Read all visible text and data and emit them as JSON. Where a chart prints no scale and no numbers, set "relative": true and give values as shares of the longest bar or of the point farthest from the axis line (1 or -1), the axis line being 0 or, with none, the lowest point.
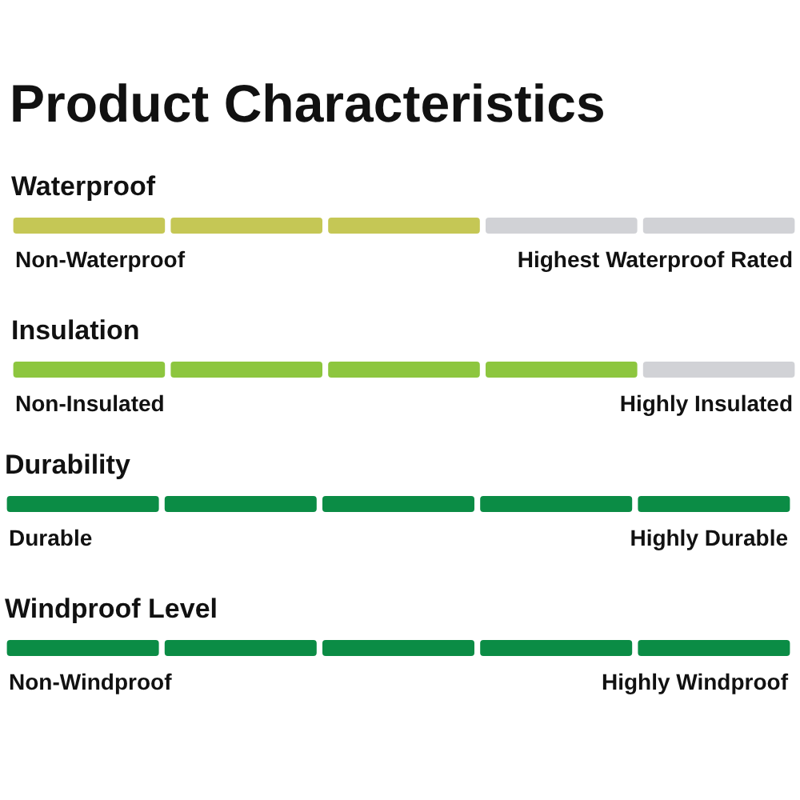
{
  "chart_data": [
    {
      "type": "other",
      "title": "Product Characteristics"
    },
    {
      "type": "bar",
      "title": "Waterproof",
      "relative": true,
      "categories": [
        null,
        null,
        null,
        null,
        null
      ],
      "values": [
        1,
        1,
        1,
        1,
        1
      ],
      "colors": [
        "#c5c755",
        "#c5c755",
        "#c5c755",
        "#d1d2d6",
        "#d1d2d6"
      ],
      "annotations": [
        "Non-Waterproof",
        "Highest Waterproof Rated"
      ]
    },
    {
      "type": "bar",
      "title": "Insulation",
      "relative": true,
      "categories": [
        null,
        null,
        null,
        null,
        null
      ],
      "values": [
        1,
        1,
        1,
        1,
        1
      ],
      "colors": [
        "#8dc63f",
        "#8dc63f",
        "#8dc63f",
        "#8dc63f",
        "#d1d2d6"
      ],
      "annotations": [
        "Non-Insulated",
        "Highly Insulated"
      ]
    },
    {
      "type": "bar",
      "title": "Durability",
      "relative": true,
      "categories": [
        null,
        null,
        null,
        null,
        null
      ],
      "values": [
        1,
        1,
        1,
        1,
        1
      ],
      "colors": [
        "#0b8c45",
        "#0b8c45",
        "#0b8c45",
        "#0b8c45",
        "#0b8c45"
      ],
      "annotations": [
        "Durable",
        "Highly Durable"
      ]
    },
    {
      "type": "bar",
      "title": "Windproof Level",
      "relative": true,
      "categories": [
        null,
        null,
        null,
        null,
        null
      ],
      "values": [
        1,
        1,
        1,
        1,
        1
      ],
      "colors": [
        "#0b8c45",
        "#0b8c45",
        "#0b8c45",
        "#0b8c45",
        "#0b8c45"
      ],
      "annotations": [
        "Non-Windproof",
        "Highly Windproof"
      ]
    }
  ]
}
